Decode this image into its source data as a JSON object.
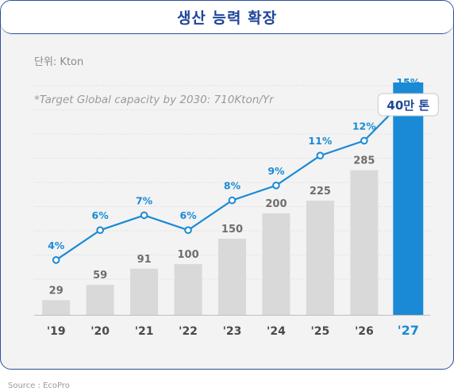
{
  "title": "생산 능력 확장",
  "unit_label": "단위: Kton",
  "note": "*Target Global capacity by 2030: 710Kton/Yr",
  "source": "Source : EcoPro",
  "colors": {
    "bar": "#d9d9d9",
    "highlight_bar": "#1a8ad6",
    "line": "#1a8ad6",
    "accent_text": "#1a8ad6",
    "title": "#1e4597"
  },
  "chart_data": {
    "type": "bar",
    "categories": [
      "'19",
      "'20",
      "'21",
      "'22",
      "'23",
      "'24",
      "'25",
      "'26",
      "'27"
    ],
    "series": [
      {
        "type": "bar",
        "values": [
          29,
          59,
          91,
          100,
          150,
          200,
          225,
          285,
          400
        ],
        "data_labels": [
          "29",
          "59",
          "91",
          "100",
          "150",
          "200",
          "225",
          "285",
          "40만 톤"
        ]
      },
      {
        "type": "line",
        "values": [
          4,
          6,
          7,
          6,
          8,
          9,
          11,
          12,
          15
        ],
        "data_labels": [
          "4%",
          "6%",
          "7%",
          "6%",
          "8%",
          "9%",
          "11%",
          "12%",
          "15%"
        ]
      }
    ],
    "highlight_category": "'27",
    "grid": true,
    "legend": "none"
  }
}
